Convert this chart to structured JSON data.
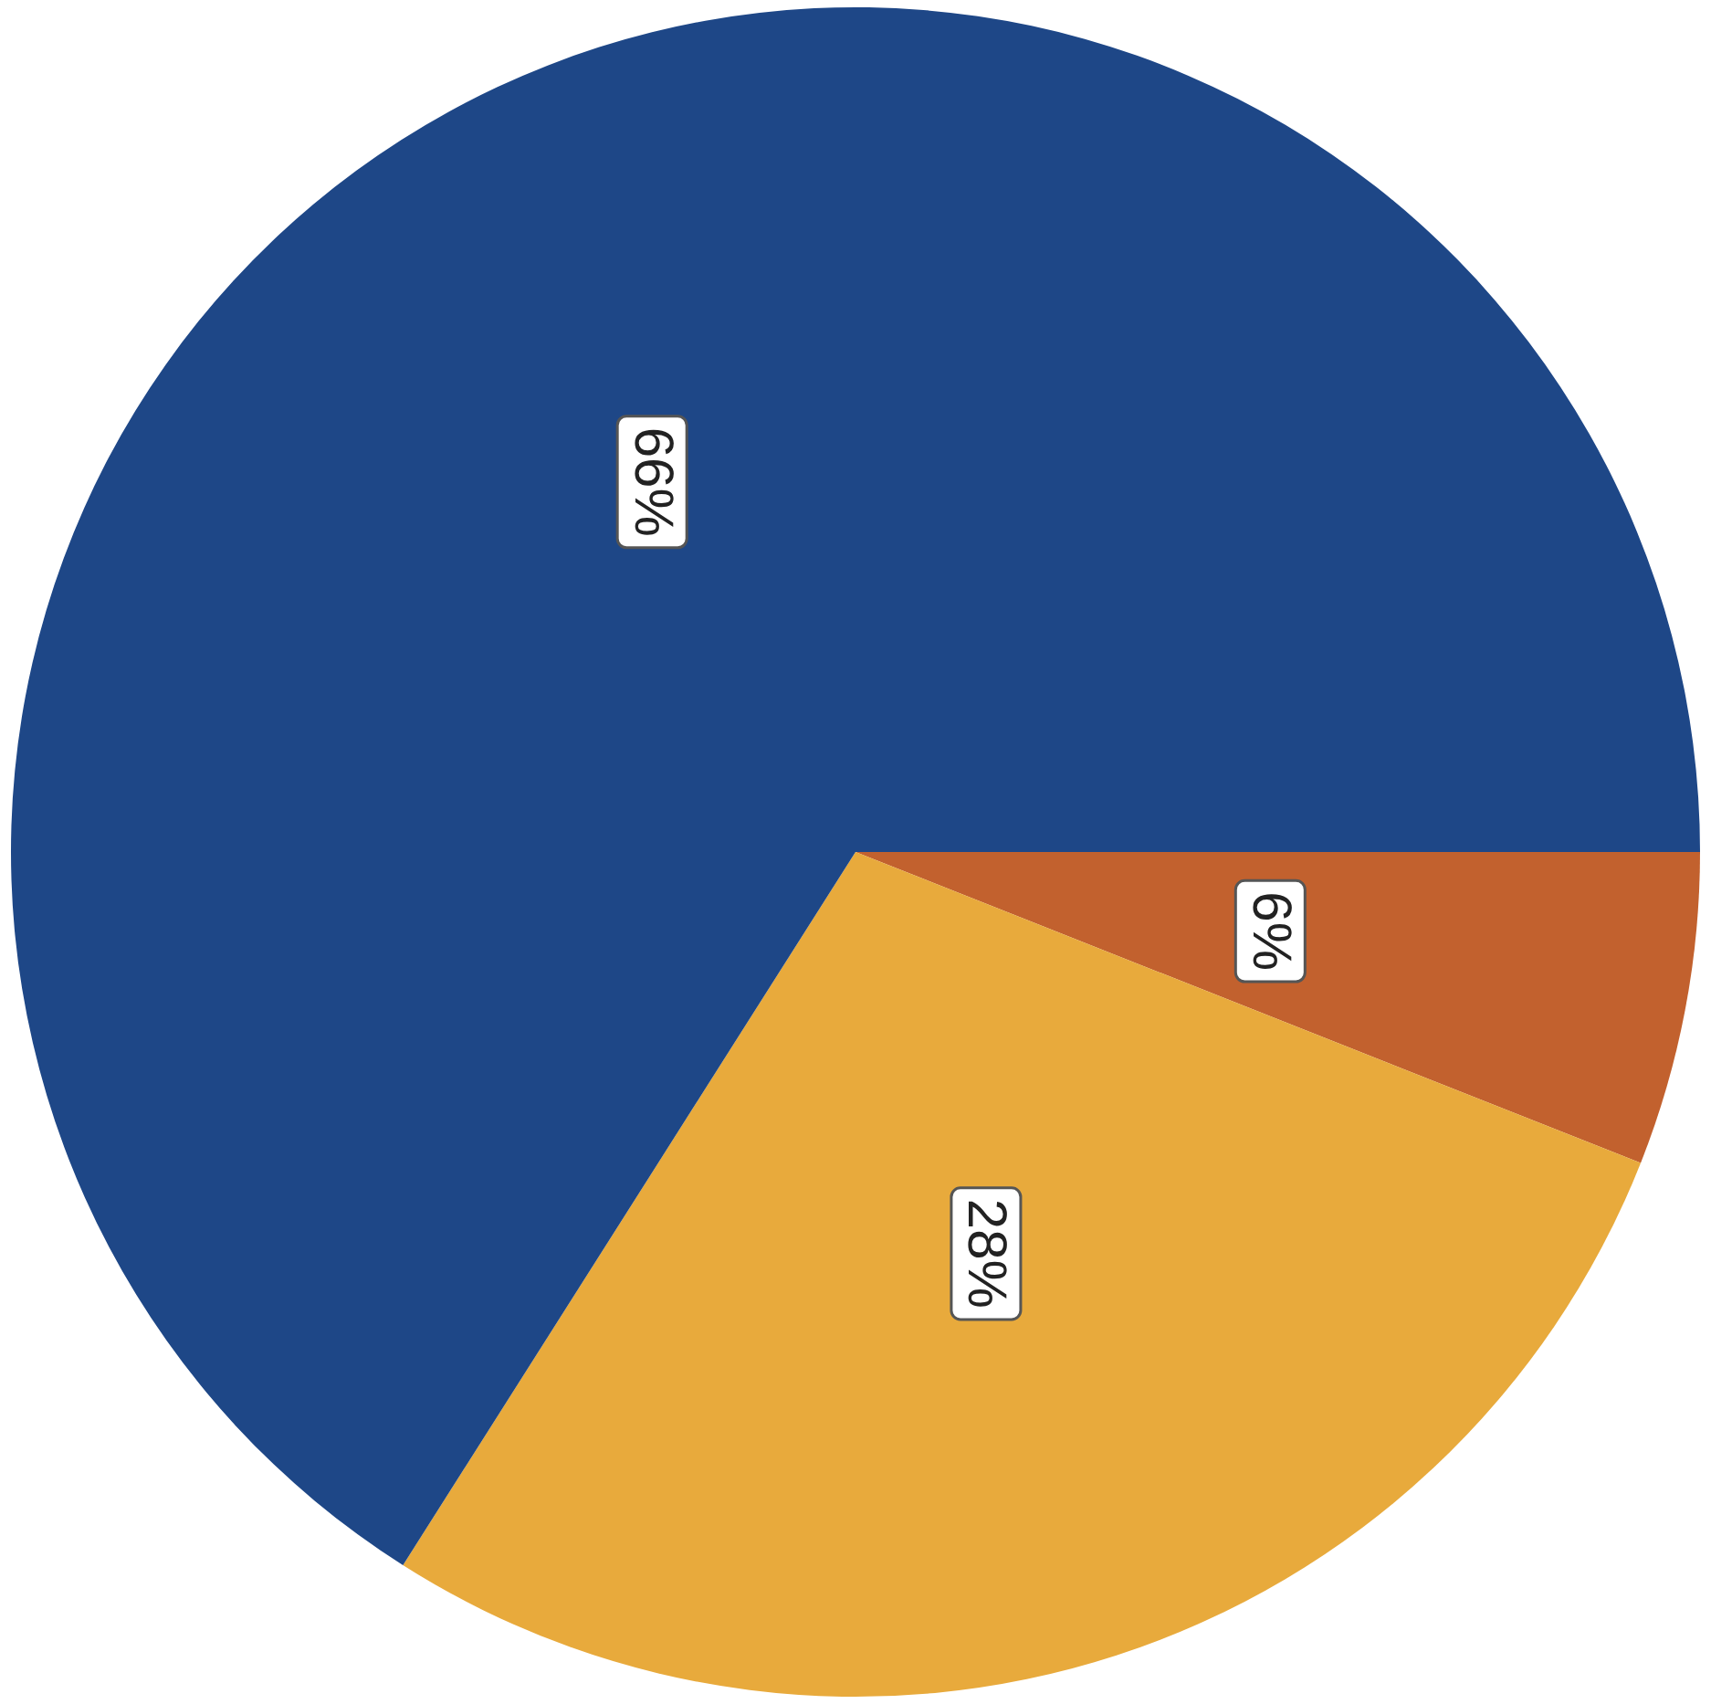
{
  "chart_data": {
    "type": "pie",
    "categories": [
      null,
      null,
      null
    ],
    "values": [
      6,
      28,
      66
    ],
    "colors": [
      "#c2612e",
      "#e8aa3c",
      "#1e4787"
    ],
    "value_labels": [
      "6%",
      "28%",
      "66%"
    ],
    "legend": false
  }
}
